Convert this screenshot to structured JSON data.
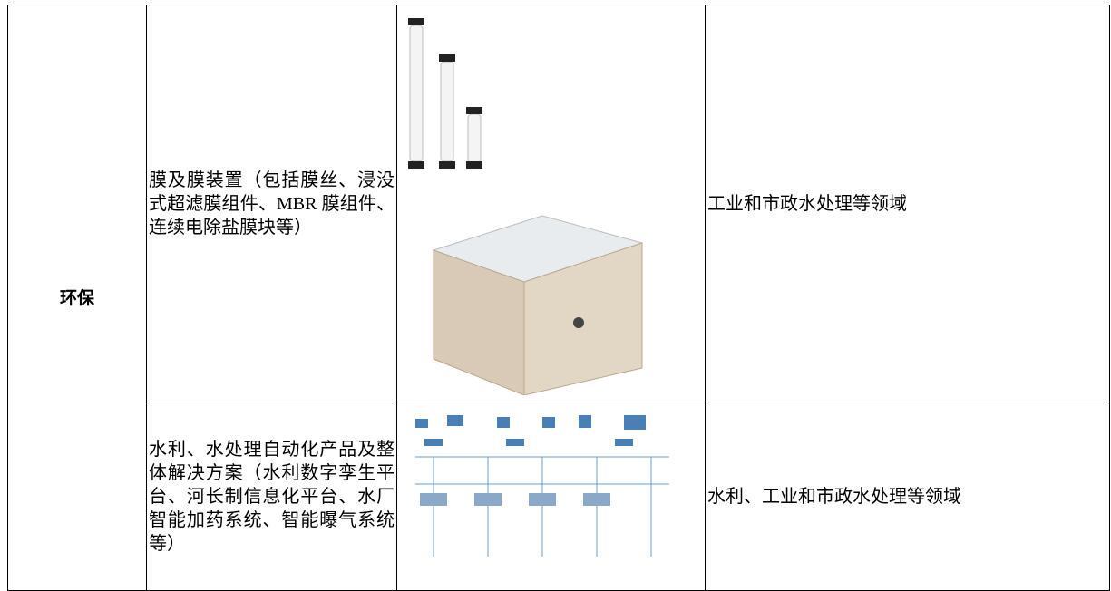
{
  "table": {
    "category": "环保",
    "rows": [
      {
        "product": "膜及膜装置（包括膜丝、浸没式超滤膜组件、MBR 膜组件、连续电除盐膜块等）",
        "application": "工业和市政水处理等领域"
      },
      {
        "product": "水利、水处理自动化产品及整体解决方案（水利数字孪生平台、河长制信息化平台、水厂智能加药系统、智能曝气系统等）",
        "application": "水利、工业和市政水处理等领域"
      }
    ]
  }
}
